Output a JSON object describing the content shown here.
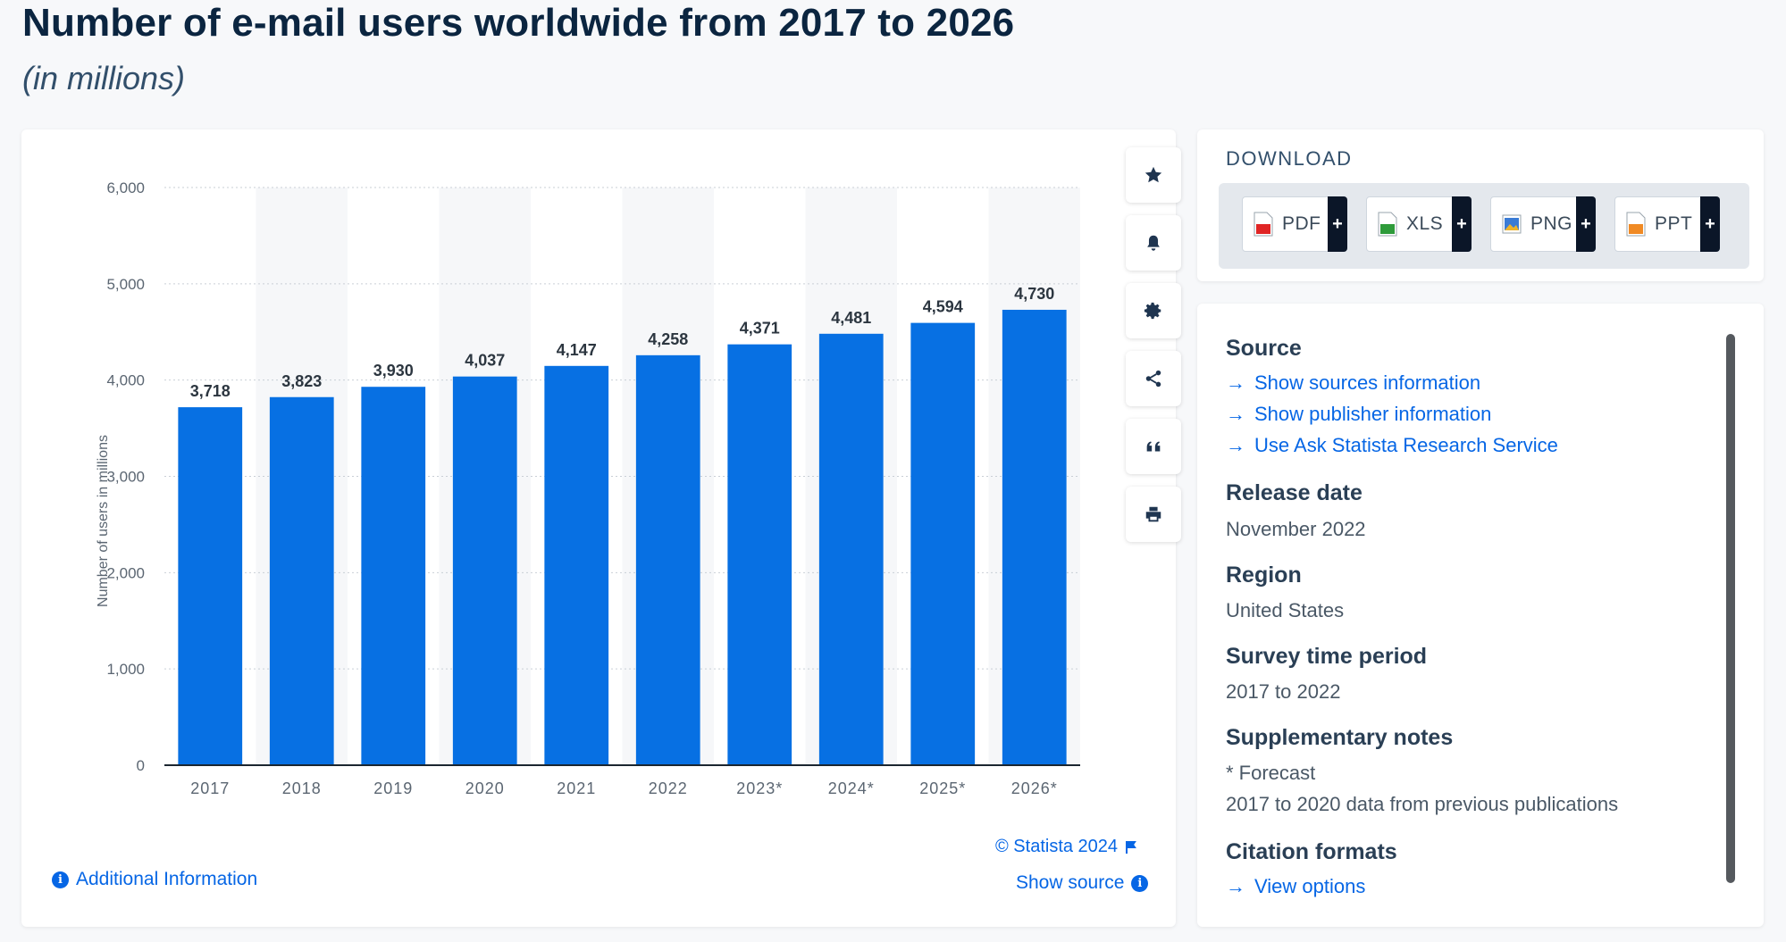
{
  "title": "Number of e-mail users worldwide from 2017 to 2026",
  "subtitle": "(in millions)",
  "chart_data": {
    "type": "bar",
    "categories": [
      "2017",
      "2018",
      "2019",
      "2020",
      "2021",
      "2022",
      "2023*",
      "2024*",
      "2025*",
      "2026*"
    ],
    "values": [
      3718,
      3823,
      3930,
      4037,
      4147,
      4258,
      4371,
      4481,
      4594,
      4730
    ],
    "value_labels": [
      "3,718",
      "3,823",
      "3,930",
      "4,037",
      "4,147",
      "4,258",
      "4,371",
      "4,481",
      "4,594",
      "4,730"
    ],
    "yticks": [
      0,
      1000,
      2000,
      3000,
      4000,
      5000,
      6000
    ],
    "ytick_labels": [
      "0",
      "1,000",
      "2,000",
      "3,000",
      "4,000",
      "5,000",
      "6,000"
    ],
    "ylim": [
      0,
      6000
    ],
    "xlabel": "",
    "ylabel": "Number of users in millions",
    "grid": true,
    "bar_color": "#0770e3"
  },
  "chart_tools": [
    {
      "name": "favorite",
      "icon": "star-icon"
    },
    {
      "name": "alert",
      "icon": "bell-icon"
    },
    {
      "name": "settings",
      "icon": "gear-icon"
    },
    {
      "name": "share",
      "icon": "share-icon"
    },
    {
      "name": "cite",
      "icon": "quote-icon"
    },
    {
      "name": "print",
      "icon": "printer-icon"
    }
  ],
  "chart_footer": {
    "copyright": "© Statista 2024",
    "show_source": "Show source",
    "additional_info": "Additional Information"
  },
  "download": {
    "title": "DOWNLOAD",
    "buttons": [
      {
        "label": "PDF",
        "icon_color": "#e02525"
      },
      {
        "label": "XLS",
        "icon_color": "#2e9b3a"
      },
      {
        "label": "PNG",
        "icon_color": "#3a7bd5"
      },
      {
        "label": "PPT",
        "icon_color": "#f08a24"
      }
    ],
    "plus": "+"
  },
  "info": {
    "source_title": "Source",
    "source_links": [
      "Show sources information",
      "Show publisher information",
      "Use Ask Statista Research Service"
    ],
    "release_title": "Release date",
    "release_value": "November 2022",
    "region_title": "Region",
    "region_value": "United States",
    "survey_title": "Survey time period",
    "survey_value": "2017 to 2022",
    "notes_title": "Supplementary notes",
    "notes": [
      "* Forecast",
      "2017 to 2020 data from previous publications"
    ],
    "citation_title": "Citation formats",
    "citation_link": "View options"
  },
  "colors": {
    "accent": "#0666e5",
    "bar": "#0770e3",
    "title": "#0b2540"
  }
}
